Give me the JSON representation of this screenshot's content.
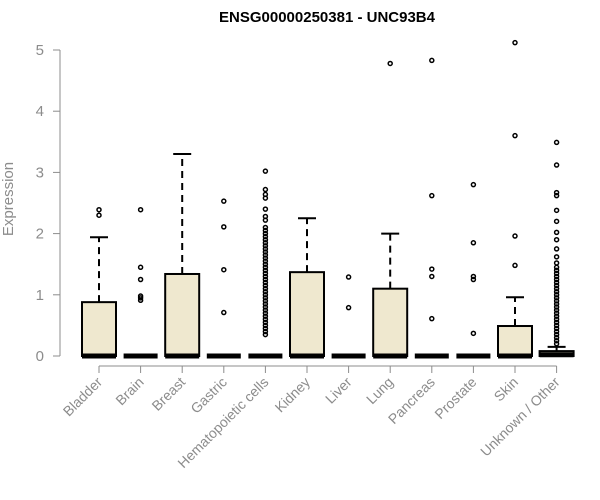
{
  "chart_data": {
    "type": "box",
    "title": "ENSG00000250381 - UNC93B4",
    "ylabel": "Expression",
    "xlabel": "",
    "ylim": [
      0,
      5
    ],
    "yticks": [
      0,
      1,
      2,
      3,
      4,
      5
    ],
    "box_fill": "#efe8cf",
    "stroke_color": "#000000",
    "axis_color": "#8c8c8c",
    "grid": false,
    "legend": "none",
    "categories": [
      "Bladder",
      "Brain",
      "Breast",
      "Gastric",
      "Hematopoietic cells",
      "Kidney",
      "Liver",
      "Lung",
      "Pancreas",
      "Prostate",
      "Skin",
      "Unknown / Other"
    ],
    "boxes": [
      {
        "category": "Bladder",
        "min": 0,
        "q1": 0,
        "median": 0,
        "q3": 0.88,
        "whisker_high": 1.94,
        "outliers": [
          2.3,
          2.39
        ]
      },
      {
        "category": "Brain",
        "min": 0,
        "q1": 0,
        "median": 0,
        "q3": 0,
        "whisker_high": 0,
        "outliers": [
          0.91,
          0.95,
          0.98,
          1.25,
          1.45,
          2.39
        ]
      },
      {
        "category": "Breast",
        "min": 0,
        "q1": 0,
        "median": 0,
        "q3": 1.34,
        "whisker_high": 3.3,
        "outliers": []
      },
      {
        "category": "Gastric",
        "min": 0,
        "q1": 0,
        "median": 0,
        "q3": 0,
        "whisker_high": 0,
        "outliers": [
          0.71,
          1.41,
          2.11,
          2.53
        ]
      },
      {
        "category": "Hematopoietic cells",
        "min": 0,
        "q1": 0,
        "median": 0,
        "q3": 0,
        "whisker_high": 0,
        "outliers": [
          0.35,
          0.4,
          0.45,
          0.5,
          0.55,
          0.6,
          0.65,
          0.7,
          0.75,
          0.8,
          0.85,
          0.9,
          0.95,
          1.0,
          1.05,
          1.1,
          1.15,
          1.2,
          1.25,
          1.3,
          1.35,
          1.4,
          1.45,
          1.5,
          1.55,
          1.6,
          1.65,
          1.7,
          1.75,
          1.8,
          1.85,
          1.9,
          1.95,
          2.0,
          2.05,
          2.1,
          2.22,
          2.28,
          2.4,
          2.58,
          2.64,
          2.72,
          3.02
        ]
      },
      {
        "category": "Kidney",
        "min": 0,
        "q1": 0,
        "median": 0,
        "q3": 1.37,
        "whisker_high": 2.25,
        "outliers": []
      },
      {
        "category": "Liver",
        "min": 0,
        "q1": 0,
        "median": 0,
        "q3": 0,
        "whisker_high": 0,
        "outliers": [
          0.79,
          1.29
        ]
      },
      {
        "category": "Lung",
        "min": 0,
        "q1": 0,
        "median": 0,
        "q3": 1.1,
        "whisker_high": 2.0,
        "outliers": [
          4.78
        ]
      },
      {
        "category": "Pancreas",
        "min": 0,
        "q1": 0,
        "median": 0,
        "q3": 0,
        "whisker_high": 0,
        "outliers": [
          0.61,
          1.3,
          1.42,
          2.62,
          4.83
        ]
      },
      {
        "category": "Prostate",
        "min": 0,
        "q1": 0,
        "median": 0,
        "q3": 0,
        "whisker_high": 0,
        "outliers": [
          0.37,
          1.25,
          1.3,
          1.85,
          2.8
        ]
      },
      {
        "category": "Skin",
        "min": 0,
        "q1": 0,
        "median": 0,
        "q3": 0.49,
        "whisker_high": 0.96,
        "outliers": [
          1.48,
          1.96,
          3.6,
          5.12
        ]
      },
      {
        "category": "Unknown / Other",
        "min": 0,
        "q1": 0,
        "median": 0.02,
        "q3": 0.08,
        "whisker_high": 0.15,
        "outliers": [
          0.2,
          0.25,
          0.3,
          0.35,
          0.4,
          0.45,
          0.5,
          0.55,
          0.6,
          0.65,
          0.7,
          0.75,
          0.8,
          0.85,
          0.9,
          0.95,
          1.0,
          1.05,
          1.1,
          1.15,
          1.2,
          1.25,
          1.3,
          1.35,
          1.4,
          1.45,
          1.52,
          1.62,
          1.75,
          1.9,
          2.02,
          2.2,
          2.38,
          2.62,
          2.67,
          3.12,
          3.49
        ]
      }
    ]
  }
}
